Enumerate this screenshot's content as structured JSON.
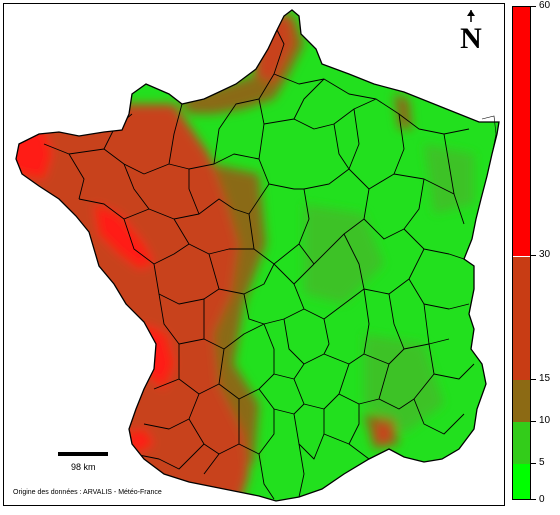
{
  "map": {
    "scale_label": "98 km",
    "source_label": "Origine des données : ARVALIS - Météo-France"
  },
  "north": {
    "letter": "N"
  },
  "legend": {
    "min": 0,
    "max": 60,
    "ticks": [
      "60",
      "30",
      "15",
      "10",
      "5",
      "0"
    ],
    "classes": [
      {
        "from": 0,
        "to": 5,
        "color": "#00ff00"
      },
      {
        "from": 5,
        "to": 10,
        "color": "#33cc1a"
      },
      {
        "from": 10,
        "to": 15,
        "color": "#8c6a14"
      },
      {
        "from": 15,
        "to": 30,
        "color": "#c83c14"
      },
      {
        "from": 30,
        "to": 60,
        "color": "#ff0000"
      }
    ]
  },
  "colors": {
    "green_bright": "#22e01e",
    "green_mid": "#3ec225",
    "olive": "#8a6a18",
    "brown_red": "#c8431c",
    "red": "#ff1a14",
    "border": "#000000"
  }
}
